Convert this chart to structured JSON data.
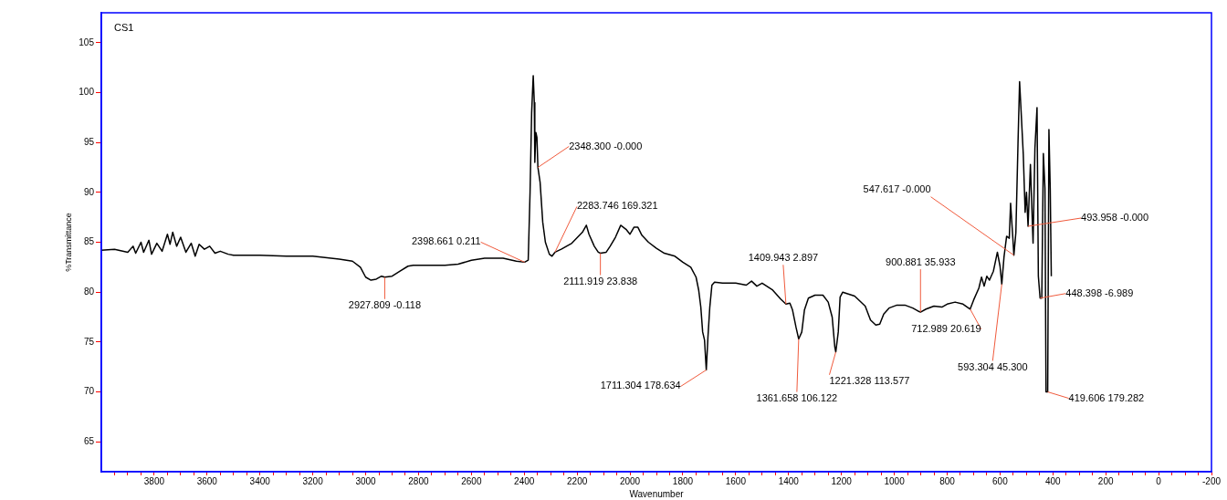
{
  "chart_data": {
    "type": "line",
    "title": "CS1",
    "xlabel": "Wavenumber",
    "ylabel": "%Transmittance",
    "xlim": [
      4000,
      -200
    ],
    "ylim": [
      62,
      108
    ],
    "xticks": [
      3800,
      3600,
      3400,
      3200,
      3000,
      2800,
      2600,
      2400,
      2200,
      2000,
      1800,
      1600,
      1400,
      1200,
      1000,
      800,
      600,
      400,
      200,
      0,
      -200,
      {
        "value": 3950,
        "label": null
      },
      {
        "value": 3900,
        "label": null
      },
      {
        "value": 3850,
        "label": null
      },
      {
        "value": 3750,
        "label": null
      },
      {
        "value": 3700,
        "label": null
      },
      {
        "value": 3650,
        "label": null
      },
      {
        "value": 3550,
        "label": null
      },
      {
        "value": 3500,
        "label": null
      },
      {
        "value": 3450,
        "label": null
      },
      {
        "value": 3350,
        "label": null
      },
      {
        "value": 3300,
        "label": null
      },
      {
        "value": 3250,
        "label": null
      },
      {
        "value": 3150,
        "label": null
      },
      {
        "value": 3100,
        "label": null
      },
      {
        "value": 3050,
        "label": null
      },
      {
        "value": 2950,
        "label": null
      },
      {
        "value": 2900,
        "label": null
      },
      {
        "value": 2850,
        "label": null
      },
      {
        "value": 2750,
        "label": null
      },
      {
        "value": 2700,
        "label": null
      },
      {
        "value": 2650,
        "label": null
      },
      {
        "value": 2550,
        "label": null
      },
      {
        "value": 2500,
        "label": null
      },
      {
        "value": 2450,
        "label": null
      },
      {
        "value": 2350,
        "label": null
      },
      {
        "value": 2300,
        "label": null
      },
      {
        "value": 2250,
        "label": null
      },
      {
        "value": 2150,
        "label": null
      },
      {
        "value": 2100,
        "label": null
      },
      {
        "value": 2050,
        "label": null
      },
      {
        "value": 1950,
        "label": null
      },
      {
        "value": 1900,
        "label": null
      },
      {
        "value": 1850,
        "label": null
      },
      {
        "value": 1750,
        "label": null
      },
      {
        "value": 1700,
        "label": null
      },
      {
        "value": 1650,
        "label": null
      },
      {
        "value": 1550,
        "label": null
      },
      {
        "value": 1500,
        "label": null
      },
      {
        "value": 1450,
        "label": null
      },
      {
        "value": 1350,
        "label": null
      },
      {
        "value": 1300,
        "label": null
      },
      {
        "value": 1250,
        "label": null
      },
      {
        "value": 1150,
        "label": null
      },
      {
        "value": 1100,
        "label": null
      },
      {
        "value": 1050,
        "label": null
      },
      {
        "value": 950,
        "label": null
      },
      {
        "value": 900,
        "label": null
      },
      {
        "value": 850,
        "label": null
      },
      {
        "value": 750,
        "label": null
      },
      {
        "value": 700,
        "label": null
      },
      {
        "value": 650,
        "label": null
      },
      {
        "value": 550,
        "label": null
      },
      {
        "value": 500,
        "label": null
      },
      {
        "value": 450,
        "label": null
      },
      {
        "value": 350,
        "label": null
      },
      {
        "value": 300,
        "label": null
      },
      {
        "value": 250,
        "label": null
      },
      {
        "value": 150,
        "label": null
      },
      {
        "value": 100,
        "label": null
      },
      {
        "value": 50,
        "label": null
      },
      {
        "value": -50,
        "label": null
      },
      {
        "value": -100,
        "label": null
      },
      {
        "value": -150,
        "label": null
      }
    ],
    "yticks": [
      65,
      70,
      75,
      80,
      85,
      90,
      95,
      100,
      105
    ],
    "x": [
      4000,
      3950,
      3900,
      3880,
      3870,
      3850,
      3840,
      3820,
      3810,
      3790,
      3770,
      3750,
      3740,
      3730,
      3715,
      3700,
      3680,
      3660,
      3645,
      3630,
      3610,
      3590,
      3570,
      3550,
      3520,
      3500,
      3400,
      3300,
      3200,
      3100,
      3050,
      3020,
      3000,
      2980,
      2960,
      2940,
      2927.809,
      2900,
      2870,
      2840,
      2820,
      2700,
      2650,
      2600,
      2550,
      2480,
      2430,
      2398.661,
      2385,
      2378,
      2372,
      2366,
      2362,
      2360,
      2356,
      2352,
      2348.3,
      2340,
      2330,
      2320,
      2305,
      2295,
      2283.746,
      2260,
      2220,
      2180,
      2165,
      2155,
      2135,
      2120,
      2111.919,
      2090,
      2075,
      2055,
      2035,
      2015,
      2000,
      1985,
      1970,
      1955,
      1930,
      1900,
      1870,
      1830,
      1800,
      1770,
      1750,
      1740,
      1732,
      1725,
      1718,
      1711.304,
      1705,
      1698,
      1690,
      1680,
      1650,
      1600,
      1560,
      1540,
      1520,
      1500,
      1460,
      1430,
      1409.943,
      1395,
      1385,
      1372,
      1361.658,
      1350,
      1340,
      1325,
      1300,
      1270,
      1250,
      1235,
      1225,
      1221.328,
      1212,
      1205,
      1195,
      1150,
      1110,
      1090,
      1070,
      1055,
      1040,
      1020,
      990,
      960,
      930,
      910,
      900.881,
      880,
      850,
      820,
      800,
      770,
      740,
      712.989,
      700,
      680,
      670,
      660,
      650,
      640,
      625,
      610,
      600,
      593.304,
      585,
      575,
      565,
      560,
      550,
      547.617,
      540,
      532,
      526,
      520,
      512,
      505,
      500,
      493.958,
      485,
      475,
      468,
      460,
      455,
      448.398,
      442,
      436,
      430,
      426,
      419.606,
      415,
      410,
      406
    ],
    "series": [
      {
        "color": "#000000",
        "values": [
          84.2,
          84.3,
          84.0,
          84.6,
          83.9,
          85.0,
          84.0,
          85.2,
          83.8,
          84.9,
          84.1,
          85.8,
          84.8,
          86.0,
          84.6,
          85.5,
          84.0,
          84.9,
          83.6,
          84.8,
          84.3,
          84.6,
          83.9,
          84.1,
          83.8,
          83.7,
          83.7,
          83.6,
          83.6,
          83.3,
          83.1,
          82.5,
          81.5,
          81.2,
          81.3,
          81.6,
          81.5,
          81.6,
          82.1,
          82.6,
          82.7,
          82.7,
          82.8,
          83.2,
          83.4,
          83.4,
          83.1,
          83.0,
          83.2,
          90,
          98,
          101.7,
          99,
          93,
          96,
          95.5,
          92.5,
          91,
          87,
          85,
          83.8,
          83.6,
          84.0,
          84.3,
          84.9,
          86.0,
          86.7,
          85.8,
          84.6,
          84.0,
          83.9,
          84.0,
          84.6,
          85.5,
          86.7,
          86.3,
          85.8,
          86.5,
          86.5,
          85.7,
          85.0,
          84.4,
          83.9,
          83.6,
          83.0,
          82.5,
          81.5,
          80.2,
          78.5,
          76,
          75.2,
          72.2,
          75.5,
          78.5,
          80.7,
          81.0,
          80.9,
          80.9,
          80.7,
          81.1,
          80.6,
          80.9,
          80.2,
          79.3,
          78.8,
          78.9,
          78.2,
          76.5,
          75.3,
          76,
          78.2,
          79.4,
          79.7,
          79.7,
          79.0,
          77.5,
          74.5,
          74.0,
          76,
          79.5,
          80.0,
          79.6,
          78.6,
          77.2,
          76.7,
          76.8,
          77.8,
          78.4,
          78.7,
          78.7,
          78.4,
          78.1,
          78.0,
          78.3,
          78.6,
          78.5,
          78.8,
          79.0,
          78.8,
          78.3,
          79.2,
          80.4,
          81.5,
          80.6,
          81.6,
          81.2,
          82.1,
          84.0,
          82.6,
          80.8,
          83.5,
          85.6,
          85.4,
          88.9,
          84.8,
          83.7,
          86.0,
          94.9,
          101.1,
          98.0,
          93.8,
          88,
          90,
          86.6,
          92.8,
          84.9,
          94.4,
          98.5,
          81.6,
          79.4,
          79.4,
          93.9,
          90.4,
          70.0,
          70.0,
          96.3,
          90.3,
          81.6
        ]
      }
    ],
    "annotations": [
      {
        "text": "2927.809 -0.118",
        "x": 2927.809,
        "y": 81.5
      },
      {
        "text": "2398.661 0.211",
        "x": 2398.661,
        "y": 83.0
      },
      {
        "text": "2348.300 -0.000",
        "x": 2348.3,
        "y": 92.5
      },
      {
        "text": "2283.746 169.321",
        "x": 2283.746,
        "y": 84.0
      },
      {
        "text": "2111.919 23.838",
        "x": 2111.919,
        "y": 83.9
      },
      {
        "text": "1711.304 178.634",
        "x": 1711.304,
        "y": 72.2
      },
      {
        "text": "1409.943 2.897",
        "x": 1409.943,
        "y": 78.8
      },
      {
        "text": "1361.658 106.122",
        "x": 1361.658,
        "y": 75.3
      },
      {
        "text": "1221.328 113.577",
        "x": 1221.328,
        "y": 74.0
      },
      {
        "text": "900.881 35.933",
        "x": 900.881,
        "y": 78.0
      },
      {
        "text": "712.989 20.619",
        "x": 712.989,
        "y": 78.3
      },
      {
        "text": "593.304 45.300",
        "x": 593.304,
        "y": 80.8
      },
      {
        "text": "547.617 -0.000",
        "x": 547.617,
        "y": 83.7
      },
      {
        "text": "493.958 -0.000",
        "x": 493.958,
        "y": 86.6
      },
      {
        "text": "448.398 -6.989",
        "x": 448.398,
        "y": 79.4
      },
      {
        "text": "419.606 179.282",
        "x": 419.606,
        "y": 70.0
      }
    ]
  }
}
